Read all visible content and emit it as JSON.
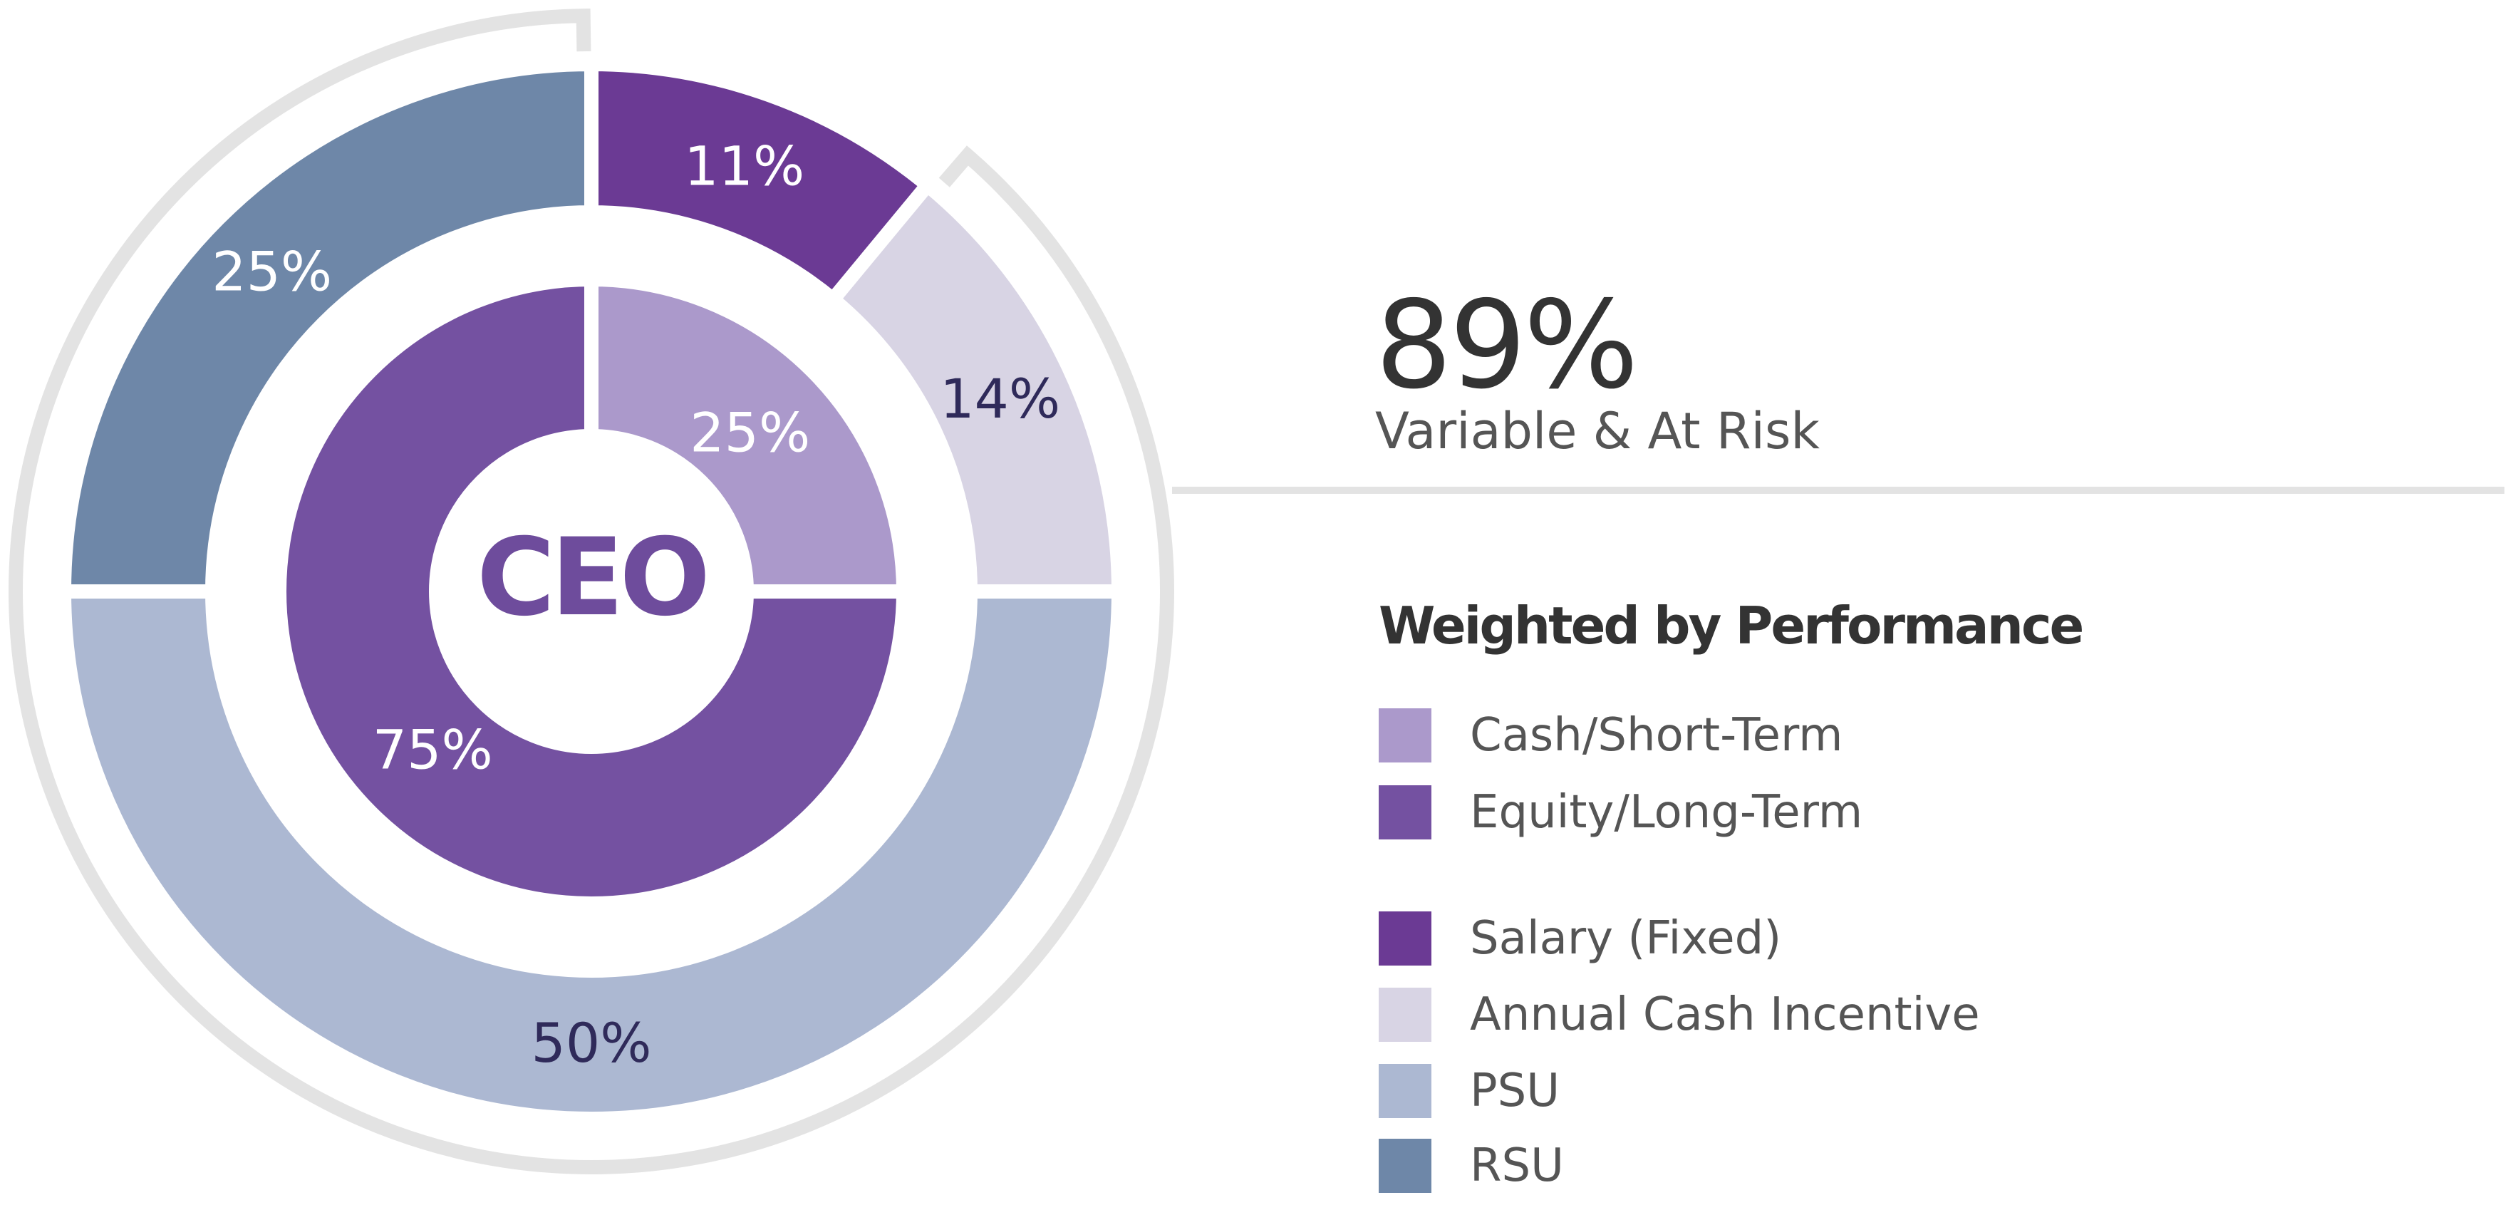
{
  "chart_data": {
    "type": "pie",
    "center_label": "CEO",
    "inner_ring": {
      "slices": [
        {
          "name": "Cash/Short-Term",
          "value": 25,
          "label": "25%",
          "color": "#ab99cb"
        },
        {
          "name": "Equity/Long-Term",
          "value": 75,
          "label": "75%",
          "color": "#7451a1"
        }
      ]
    },
    "outer_ring": {
      "slices": [
        {
          "name": "Salary (Fixed)",
          "value": 11,
          "label": "11%",
          "color": "#6b3a94"
        },
        {
          "name": "Annual Cash Incentive",
          "value": 14,
          "label": "14%",
          "color": "#d8d4e4"
        },
        {
          "name": "PSU",
          "value": 50,
          "label": "50%",
          "color": "#acb8d2"
        },
        {
          "name": "RSU",
          "value": 25,
          "label": "25%",
          "color": "#6e87a8"
        }
      ]
    },
    "highlight": {
      "value": "89%",
      "label": "Variable & At Risk"
    },
    "legend_title": "Weighted by Performance",
    "legend": [
      {
        "label": "Cash/Short-Term",
        "color": "#ab99cb"
      },
      {
        "label": "Equity/Long-Term",
        "color": "#7451a1"
      },
      {
        "label": "Salary (Fixed)",
        "color": "#6b3a94"
      },
      {
        "label": "Annual Cash Incentive",
        "color": "#d8d4e4"
      },
      {
        "label": "PSU",
        "color": "#acb8d2"
      },
      {
        "label": "RSU",
        "color": "#6e87a8"
      }
    ]
  }
}
